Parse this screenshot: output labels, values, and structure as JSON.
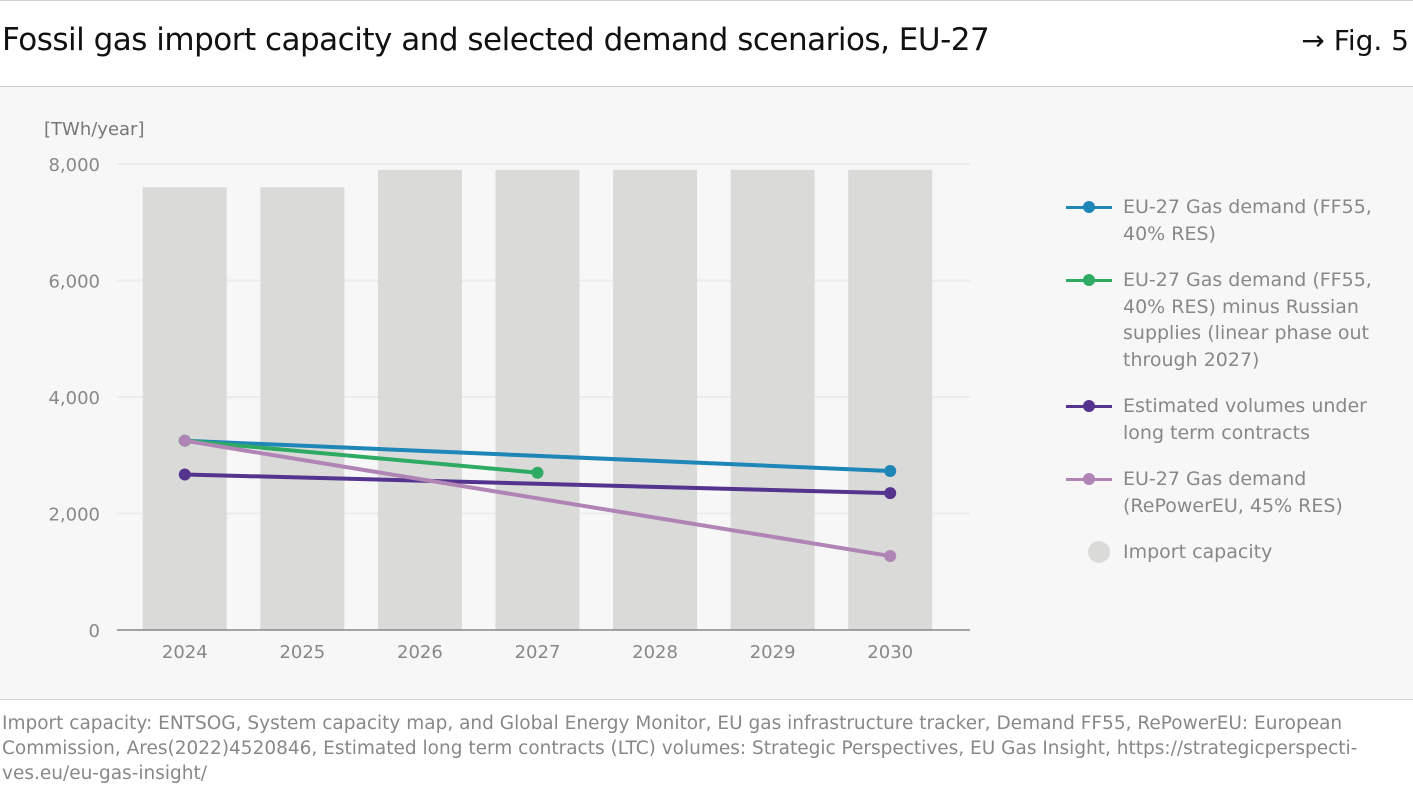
{
  "header": {
    "title": "Fossil gas import capacity and selected demand scenarios, EU-27",
    "figure_ref": "→ Fig. 5"
  },
  "source": "Import capacity: ENTSOG, System capacity map, and Global Energy Monitor, EU gas infrastructure tracker, Demand FF55, RePowerEU: European Commission, Ares(2022)4520846, Estimated long term contracts (LTC) volumes: Strategic Perspectives, EU Gas Insight, https://strategicperspecti-ves.eu/eu-gas-insight/",
  "chart_data": {
    "type": "bar",
    "title": "Fossil gas import capacity and selected demand scenarios, EU-27",
    "ylabel": "[TWh/year]",
    "ylim": [
      0,
      8000
    ],
    "yticks": [
      0,
      2000,
      4000,
      6000,
      8000
    ],
    "ytick_labels": [
      "0",
      "2,000",
      "4,000",
      "6,000",
      "8,000"
    ],
    "grid": true,
    "legend_placement": "right",
    "categories": [
      "2024",
      "2025",
      "2026",
      "2027",
      "2028",
      "2029",
      "2030"
    ],
    "bars": {
      "name": "Import capacity",
      "color": "#dadad9",
      "values": [
        7600,
        7600,
        7900,
        7900,
        7900,
        7900,
        7900
      ]
    },
    "series": [
      {
        "name": "EU-27 Gas demand (FF55, 40% RES)",
        "color": "#1f86b8",
        "x": [
          "2024",
          "2030"
        ],
        "values": [
          3250,
          2730
        ]
      },
      {
        "name": "EU-27 Gas demand (FF55, 40% RES) minus Russian supplies (linear phase out through 2027)",
        "color": "#2eaa63",
        "x": [
          "2024",
          "2027"
        ],
        "values": [
          3250,
          2700
        ]
      },
      {
        "name": "Estimated volumes under long term contracts",
        "color": "#54348f",
        "x": [
          "2024",
          "2030"
        ],
        "values": [
          2670,
          2350
        ]
      },
      {
        "name": "EU-27 Gas demand (RePowerEU, 45% RES)",
        "color": "#b085b5",
        "x": [
          "2024",
          "2030"
        ],
        "values": [
          3250,
          1270
        ]
      }
    ]
  }
}
